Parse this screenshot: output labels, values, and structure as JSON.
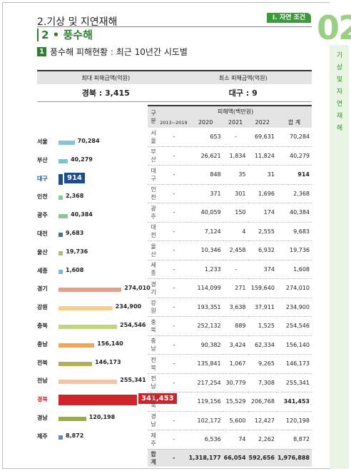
{
  "header": {
    "chapter_title": "2.기상 및 지연재해",
    "section_tag": "I. 자연 조건",
    "chapter_number": "02",
    "side_label": [
      "기",
      "상",
      "및",
      "자",
      "연",
      "재",
      "해"
    ],
    "subsection": "2 • 풍수해",
    "section_number": "1",
    "section_title": "풍수해 피해현황 : 최근 10년간 시도별"
  },
  "summary": {
    "max_label": "최대 피해금액(억원)",
    "min_label": "최소 피해금액(억원)",
    "max_value": "경북 : 3,415",
    "min_value": "대구 : 9"
  },
  "bar_colors": {
    "blue": "#86c3d9",
    "green": "#8fc59b",
    "navy": "#4e6f8f",
    "teal": "#5b8fa6",
    "khaki": "#b6b770",
    "sky": "#7fb6d6",
    "salmon": "#e59f8a",
    "cream": "#f4d18a",
    "lime": "#c0d683",
    "orange": "#f0a75b",
    "olive": "#b4ae5a",
    "peach": "#f3c5a7",
    "red": "#d0242a",
    "darkblue": "#1f4e8c",
    "moss": "#9aab4e",
    "slate": "#6b8aa3"
  },
  "chart_data": {
    "type": "bar",
    "categories": [
      "서울",
      "부산",
      "대구",
      "인천",
      "광주",
      "대전",
      "울산",
      "세종",
      "경기",
      "강원",
      "충북",
      "충남",
      "전북",
      "전남",
      "경북",
      "경남",
      "제주"
    ],
    "values": [
      70284,
      40279,
      914,
      2368,
      40384,
      9683,
      19736,
      1608,
      274010,
      234900,
      254546,
      156140,
      146173,
      255341,
      341453,
      120198,
      8872
    ],
    "value_labels": [
      "70,284",
      "40,279",
      "914",
      "2,368",
      "40,384",
      "9,683",
      "19,736",
      "1,608",
      "274,010",
      "234,900",
      "254,546",
      "156,140",
      "146,173",
      "255,341",
      "341,453",
      "120,198",
      "8,872"
    ],
    "colors": [
      "#86c3d9",
      "#7fc4c7",
      "#1f4e8c",
      "#8fc59b",
      "#8fc59b",
      "#4e6f8f",
      "#b6b770",
      "#7fb6d6",
      "#e59f8a",
      "#f4d18a",
      "#c0d683",
      "#f0a75b",
      "#b4ae5a",
      "#f3c5a7",
      "#d0242a",
      "#9aab4e",
      "#6b8aa3"
    ],
    "highlight": [
      "대구",
      "경북"
    ],
    "xlim": [
      0,
      341453
    ]
  },
  "table": {
    "head_region": "구 분",
    "head_group": "피해액(백만원)",
    "columns": [
      "2013~2019",
      "2020",
      "2021",
      "2022",
      "합 계"
    ],
    "rows": [
      {
        "region": "서 울",
        "c1": "-",
        "c2": "653",
        "c3": "-",
        "c4": "69,631",
        "total": "70,284"
      },
      {
        "region": "부 산",
        "c1": "-",
        "c2": "26,621",
        "c3": "1,834",
        "c4": "11,824",
        "total": "40,279"
      },
      {
        "region": "대 구",
        "c1": "-",
        "c2": "848",
        "c3": "35",
        "c4": "31",
        "total": "914"
      },
      {
        "region": "인 천",
        "c1": "-",
        "c2": "371",
        "c3": "301",
        "c4": "1,696",
        "total": "2,368"
      },
      {
        "region": "광 주",
        "c1": "-",
        "c2": "40,059",
        "c3": "150",
        "c4": "174",
        "total": "40,384"
      },
      {
        "region": "대 전",
        "c1": "-",
        "c2": "7,124",
        "c3": "4",
        "c4": "2,555",
        "total": "9,683"
      },
      {
        "region": "울 산",
        "c1": "-",
        "c2": "10,346",
        "c3": "2,458",
        "c4": "6,932",
        "total": "19,736"
      },
      {
        "region": "세 종",
        "c1": "-",
        "c2": "1,233",
        "c3": "-",
        "c4": "374",
        "total": "1,608"
      },
      {
        "region": "경 기",
        "c1": "-",
        "c2": "114,099",
        "c3": "271",
        "c4": "159,640",
        "total": "274,010"
      },
      {
        "region": "강 원",
        "c1": "-",
        "c2": "193,351",
        "c3": "3,638",
        "c4": "37,911",
        "total": "234,900"
      },
      {
        "region": "충 북",
        "c1": "-",
        "c2": "252,132",
        "c3": "889",
        "c4": "1,525",
        "total": "254,546"
      },
      {
        "region": "충 남",
        "c1": "-",
        "c2": "90,382",
        "c3": "3,424",
        "c4": "62,334",
        "total": "156,140"
      },
      {
        "region": "전 북",
        "c1": "-",
        "c2": "135,841",
        "c3": "1,067",
        "c4": "9,265",
        "total": "146,173"
      },
      {
        "region": "전 남",
        "c1": "-",
        "c2": "217,254",
        "c3": "30,779",
        "c4": "7,308",
        "total": "255,341"
      },
      {
        "region": "경 북",
        "c1": "-",
        "c2": "119,156",
        "c3": "15,529",
        "c4": "206,768",
        "total": "341,453"
      },
      {
        "region": "경 남",
        "c1": "-",
        "c2": "102,172",
        "c3": "5,600",
        "c4": "12,427",
        "total": "120,198"
      },
      {
        "region": "제 주",
        "c1": "-",
        "c2": "6,536",
        "c3": "74",
        "c4": "2,262",
        "total": "8,872"
      }
    ],
    "total_row": {
      "region": "합 계",
      "c1": "-",
      "c2": "1,318,177",
      "c3": "66,054",
      "c4": "592,656",
      "total": "1,976,888"
    }
  }
}
